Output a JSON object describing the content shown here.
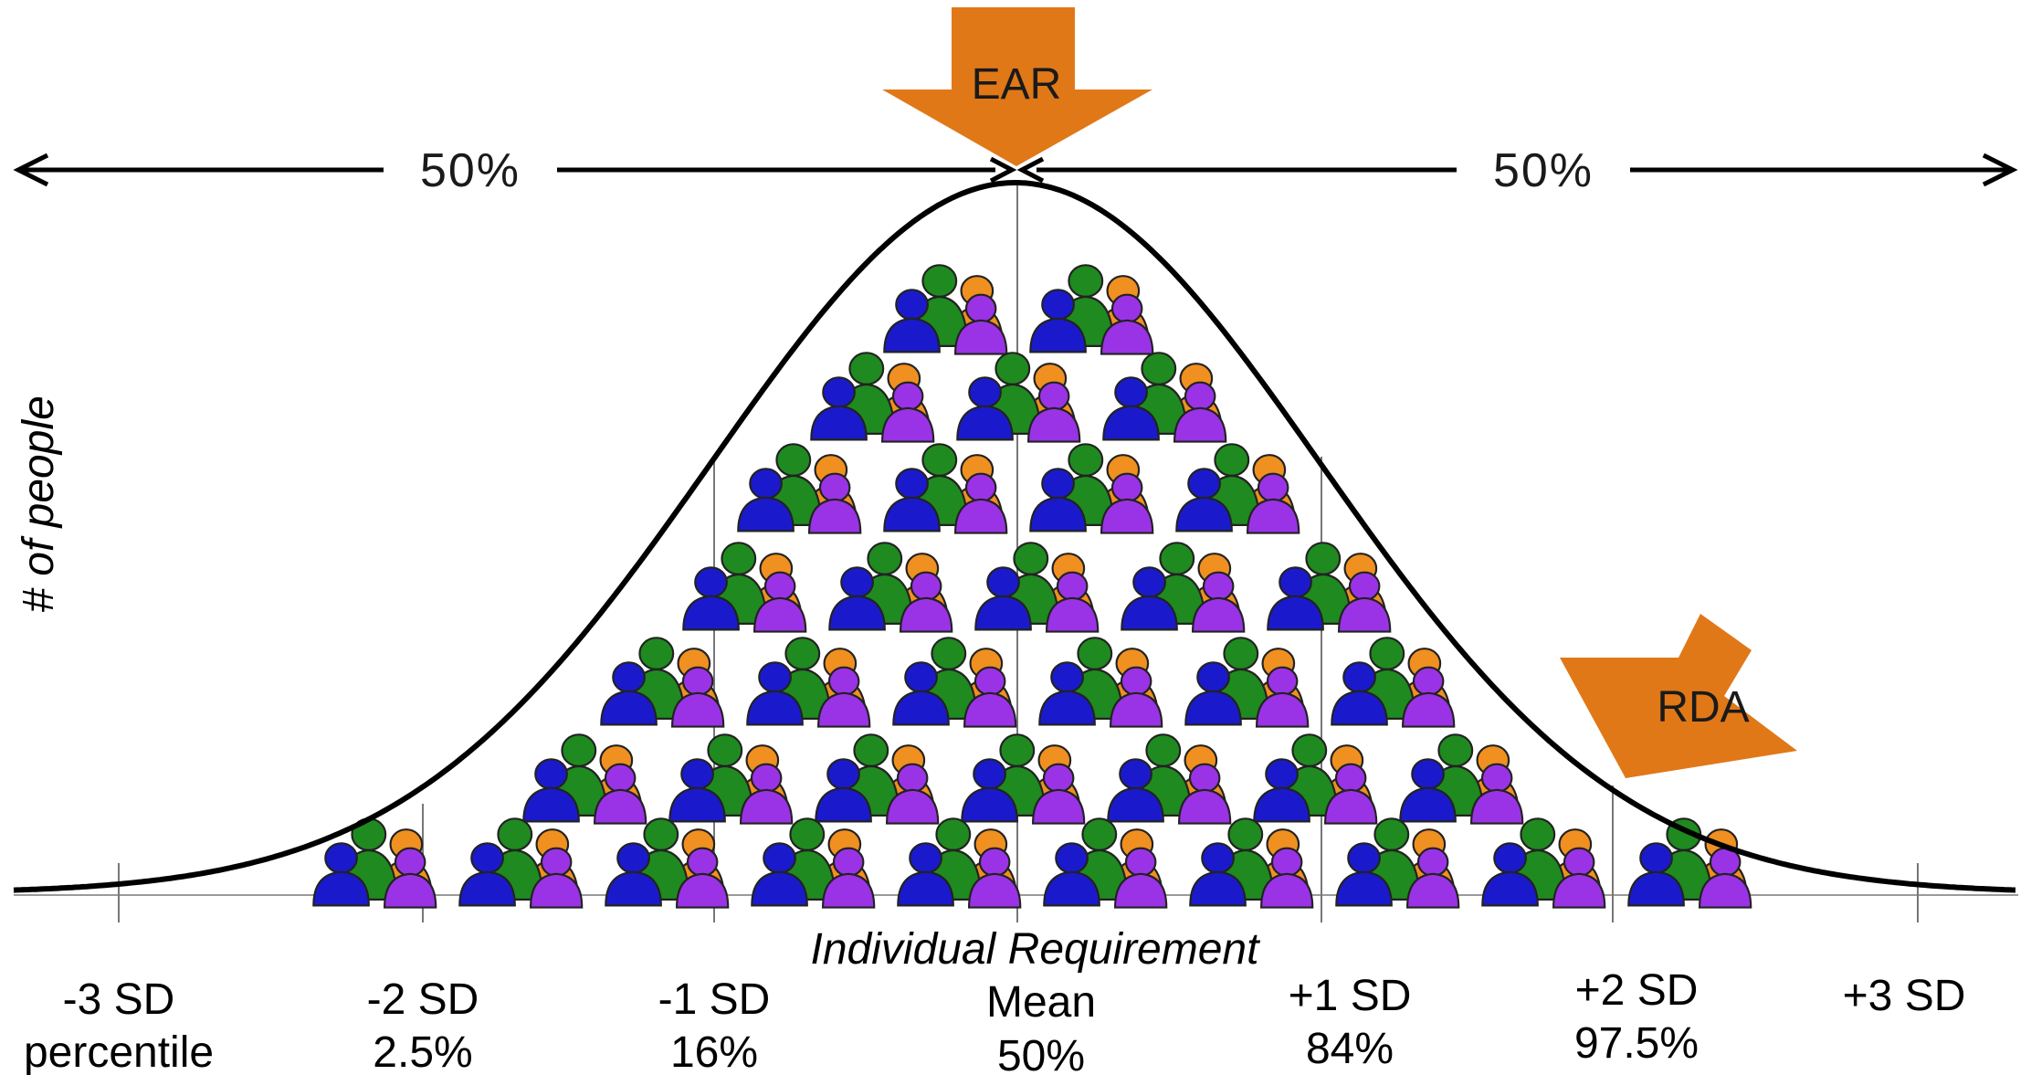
{
  "arrows": {
    "top": {
      "label": "EAR",
      "color": "#e07818"
    },
    "right": {
      "label": "RDA",
      "color": "#e07818"
    }
  },
  "split_labels": {
    "left": "50%",
    "right": "50%"
  },
  "axis": {
    "x_label": "Individual Requirement",
    "y_label": "# of people"
  },
  "ticks": [
    {
      "top": "-3 SD",
      "bottom": "percentile"
    },
    {
      "top": "-2 SD",
      "bottom": "2.5%"
    },
    {
      "top": "-1 SD",
      "bottom": "16%"
    },
    {
      "top": "Mean",
      "bottom": "50%"
    },
    {
      "top": "+1 SD",
      "bottom": "84%"
    },
    {
      "top": "+2 SD",
      "bottom": "97.5%"
    },
    {
      "top": "+3 SD",
      "bottom": ""
    }
  ],
  "people_rows": [
    2,
    3,
    4,
    5,
    6,
    7,
    10
  ],
  "people_colors": {
    "blue": "#1a1acc",
    "green": "#1f8a1f",
    "orange": "#f09020",
    "purple": "#9a33e6"
  }
}
